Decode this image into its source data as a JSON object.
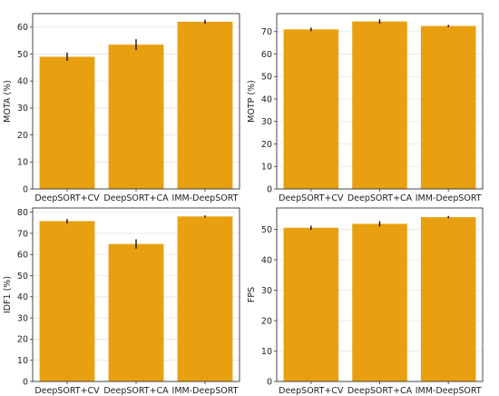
{
  "chart_data": [
    {
      "type": "bar",
      "categories": [
        "DeepSORT+CV",
        "DeepSORT+CA",
        "IMM-DeepSORT"
      ],
      "values": [
        49,
        53.5,
        62
      ],
      "errors": [
        1.5,
        2.0,
        0.8
      ],
      "title": "",
      "xlabel": "",
      "ylabel": "MOTA (%)",
      "ylim": [
        0,
        65
      ],
      "yticks": [
        0,
        10,
        20,
        30,
        40,
        50,
        60
      ],
      "grid": true,
      "color": "#E8A010"
    },
    {
      "type": "bar",
      "categories": [
        "DeepSORT+CV",
        "DeepSORT+CA",
        "IMM-DeepSORT"
      ],
      "values": [
        71,
        74.5,
        72.5
      ],
      "errors": [
        0.8,
        1.0,
        0.5
      ],
      "title": "",
      "xlabel": "",
      "ylabel": "MOTP (%)",
      "ylim": [
        0,
        78
      ],
      "yticks": [
        0,
        10,
        20,
        30,
        40,
        50,
        60,
        70
      ],
      "grid": true,
      "color": "#E8A010"
    },
    {
      "type": "bar",
      "categories": [
        "DeepSORT+CV",
        "DeepSORT+CA",
        "IMM-DeepSORT"
      ],
      "values": [
        75.8,
        65,
        78
      ],
      "errors": [
        1.0,
        2.2,
        0.5
      ],
      "title": "",
      "xlabel": "",
      "ylabel": "IDF1 (%)",
      "ylim": [
        0,
        82
      ],
      "yticks": [
        0,
        10,
        20,
        30,
        40,
        50,
        60,
        70,
        80
      ],
      "grid": true,
      "color": "#E8A010"
    },
    {
      "type": "bar",
      "categories": [
        "DeepSORT+CV",
        "DeepSORT+CA",
        "IMM-DeepSORT"
      ],
      "values": [
        50.5,
        51.8,
        54
      ],
      "errors": [
        0.7,
        0.9,
        0.4
      ],
      "title": "",
      "xlabel": "",
      "ylabel": "FPS",
      "ylim": [
        0,
        57
      ],
      "yticks": [
        0,
        10,
        20,
        30,
        40,
        50
      ],
      "grid": true,
      "color": "#E8A010"
    }
  ]
}
